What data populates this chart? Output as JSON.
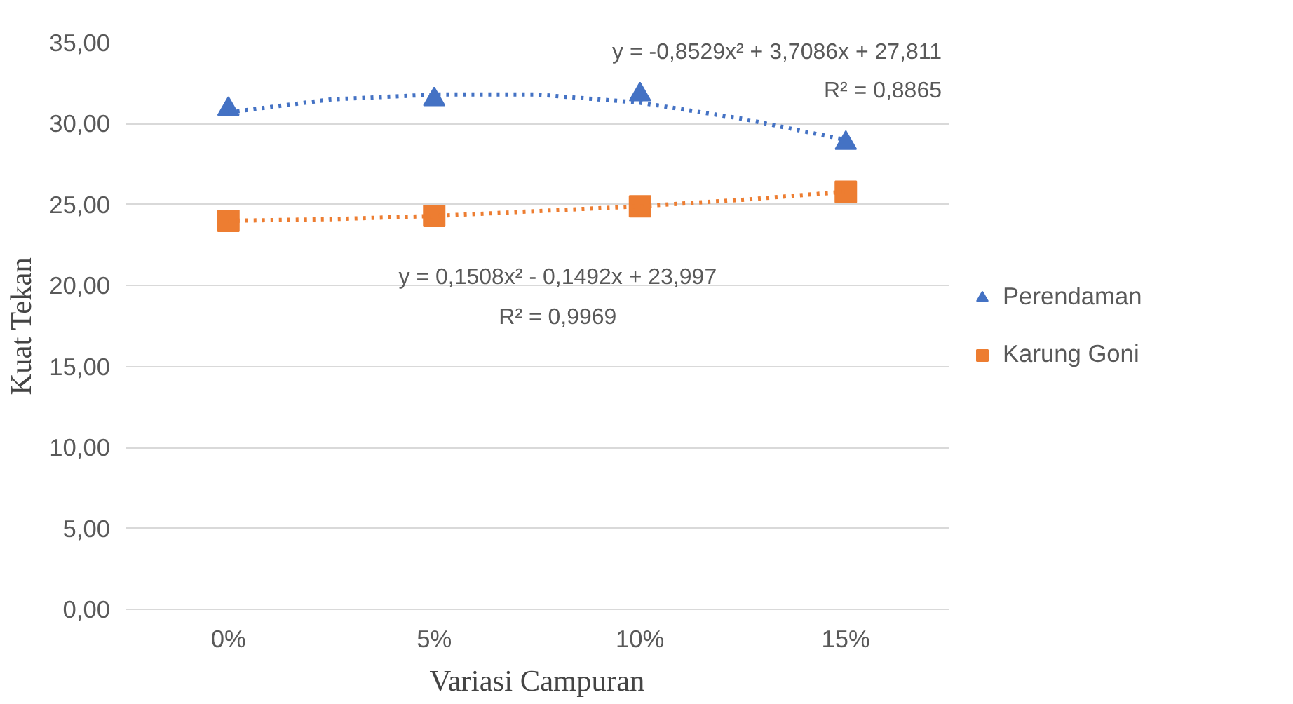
{
  "chart_data": {
    "type": "scatter",
    "xlabel": "Variasi Campuran",
    "ylabel": "Kuat Tekan",
    "x": [
      0,
      5,
      10,
      15
    ],
    "xlim": [
      -2.5,
      17.5
    ],
    "xticks": [
      {
        "value": 0,
        "label": "0%"
      },
      {
        "value": 5,
        "label": "5%"
      },
      {
        "value": 10,
        "label": "10%"
      },
      {
        "value": 15,
        "label": "15%"
      }
    ],
    "ylim": [
      0,
      35
    ],
    "yticks": [
      {
        "value": 0,
        "label": "0,00"
      },
      {
        "value": 5,
        "label": "5,00"
      },
      {
        "value": 10,
        "label": "10,00"
      },
      {
        "value": 15,
        "label": "15,00"
      },
      {
        "value": 20,
        "label": "20,00"
      },
      {
        "value": 25,
        "label": "25,00"
      },
      {
        "value": 30,
        "label": "30,00"
      },
      {
        "value": 35,
        "label": "35,00"
      }
    ],
    "grid": "y",
    "legend": "right",
    "series": [
      {
        "name": "Perendaman",
        "color": "#4472c4",
        "marker": "triangle",
        "values": [
          30.9,
          31.5,
          31.8,
          28.8
        ]
      },
      {
        "name": "Karung Goni",
        "color": "#ed7d31",
        "marker": "square",
        "values": [
          24.0,
          24.3,
          24.9,
          25.8
        ]
      },
      {
        "type": "line",
        "line_style": "dotted",
        "color": "#4472c4",
        "x": [
          0,
          2.5,
          5,
          7.5,
          10,
          12.5,
          15
        ],
        "values": [
          30.7,
          31.5,
          31.8,
          31.8,
          31.3,
          30.3,
          29.0
        ]
      },
      {
        "type": "line",
        "line_style": "dotted",
        "color": "#ed7d31",
        "x": [
          0,
          2.5,
          5,
          7.5,
          10,
          12.5,
          15
        ],
        "values": [
          24.0,
          24.1,
          24.3,
          24.6,
          24.9,
          25.3,
          25.8
        ]
      }
    ],
    "annotations": [
      "y = -0,8529x² + 3,7086x + 27,811",
      "R² = 0,8865",
      "y = 0,1508x² - 0,1492x + 23,997",
      "R² = 0,9969"
    ]
  }
}
